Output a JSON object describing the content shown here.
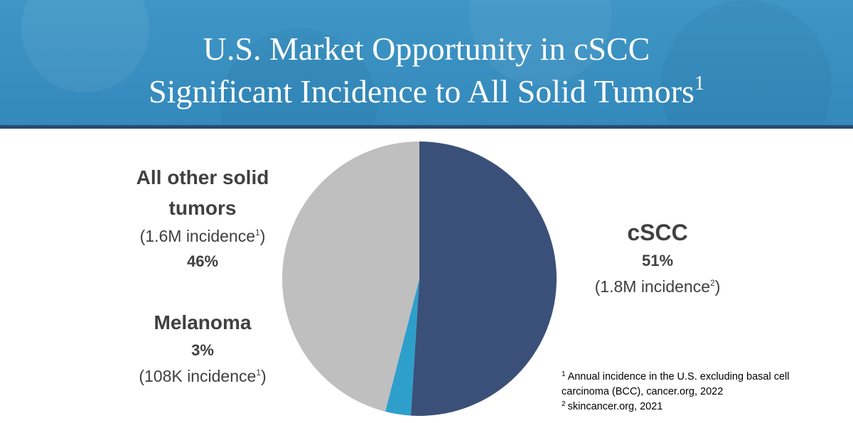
{
  "chart_data": {
    "type": "pie",
    "title": "U.S. Market Opportunity in cSCC",
    "subtitle": "Significant Incidence to All Solid Tumors",
    "subtitle_note": "1",
    "categories": [
      "cSCC",
      "Melanoma",
      "All other solid tumors"
    ],
    "values": [
      51,
      3,
      46
    ],
    "value_labels": [
      "51%",
      "3%",
      "46%"
    ],
    "colors": [
      "#3a5078",
      "#2e9fcb",
      "#bfbfbf"
    ],
    "incidence": [
      {
        "text": "(1.8M incidence",
        "note": "2",
        "end": ")"
      },
      {
        "text": "(108K incidence",
        "note": "1",
        "end": ")"
      },
      {
        "text": "(1.6M incidence",
        "note": "1",
        "end": ")"
      }
    ],
    "footnotes": [
      {
        "mark": "1",
        "text": "Annual incidence in the U.S. excluding basal cell carcinoma (BCC), cancer.org, 2022"
      },
      {
        "mark": "2",
        "text": "skincancer.org, 2021"
      }
    ]
  }
}
